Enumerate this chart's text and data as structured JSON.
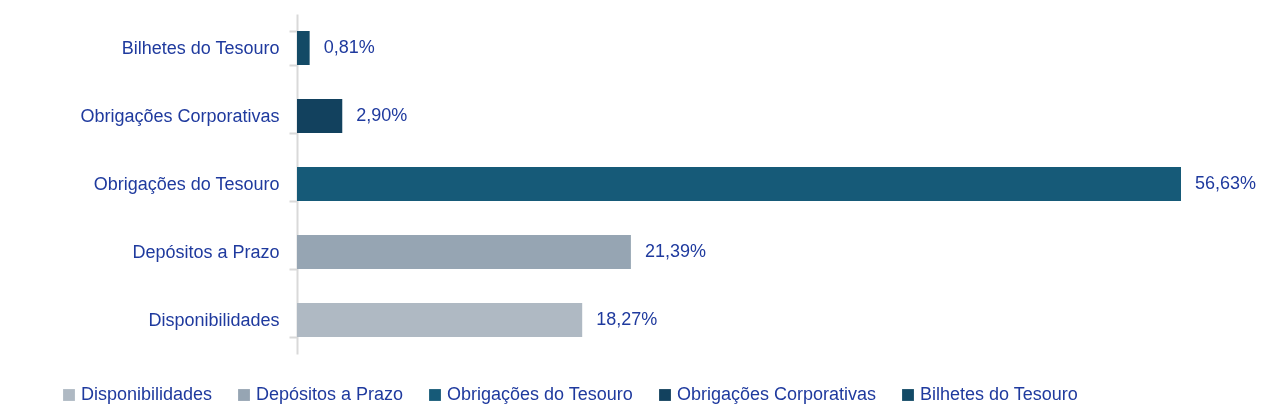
{
  "chart_data": {
    "type": "bar",
    "orientation": "horizontal",
    "stacked": true,
    "categories": [
      "Bilhetes do Tesouro",
      "Obrigações Corporativas",
      "Obrigações do Tesouro",
      "Depósitos a Prazo",
      "Disponibilidades"
    ],
    "series": [
      {
        "name": "Disponibilidades",
        "color": "#afb9c3",
        "values": [
          null,
          null,
          null,
          null,
          18.27
        ],
        "value_labels": [
          null,
          null,
          null,
          null,
          "18,27%"
        ]
      },
      {
        "name": "Depósitos a Prazo",
        "color": "#96a5b3",
        "values": [
          null,
          null,
          null,
          21.39,
          null
        ],
        "value_labels": [
          null,
          null,
          null,
          "21,39%",
          null
        ]
      },
      {
        "name": "Obrigações do Tesouro",
        "color": "#165a78",
        "values": [
          null,
          null,
          56.63,
          null,
          null
        ],
        "value_labels": [
          null,
          null,
          "56,63%",
          null,
          null
        ]
      },
      {
        "name": "Obrigações Corporativas",
        "color": "#12415e",
        "values": [
          null,
          2.9,
          null,
          null,
          null
        ],
        "value_labels": [
          null,
          "2,90%",
          null,
          null,
          null
        ]
      },
      {
        "name": "Bilhetes do Tesouro",
        "color": "#134a66",
        "values": [
          0.81,
          null,
          null,
          null,
          null
        ],
        "value_labels": [
          "0,81%",
          null,
          null,
          null,
          null
        ]
      }
    ],
    "legend": "bottom"
  }
}
